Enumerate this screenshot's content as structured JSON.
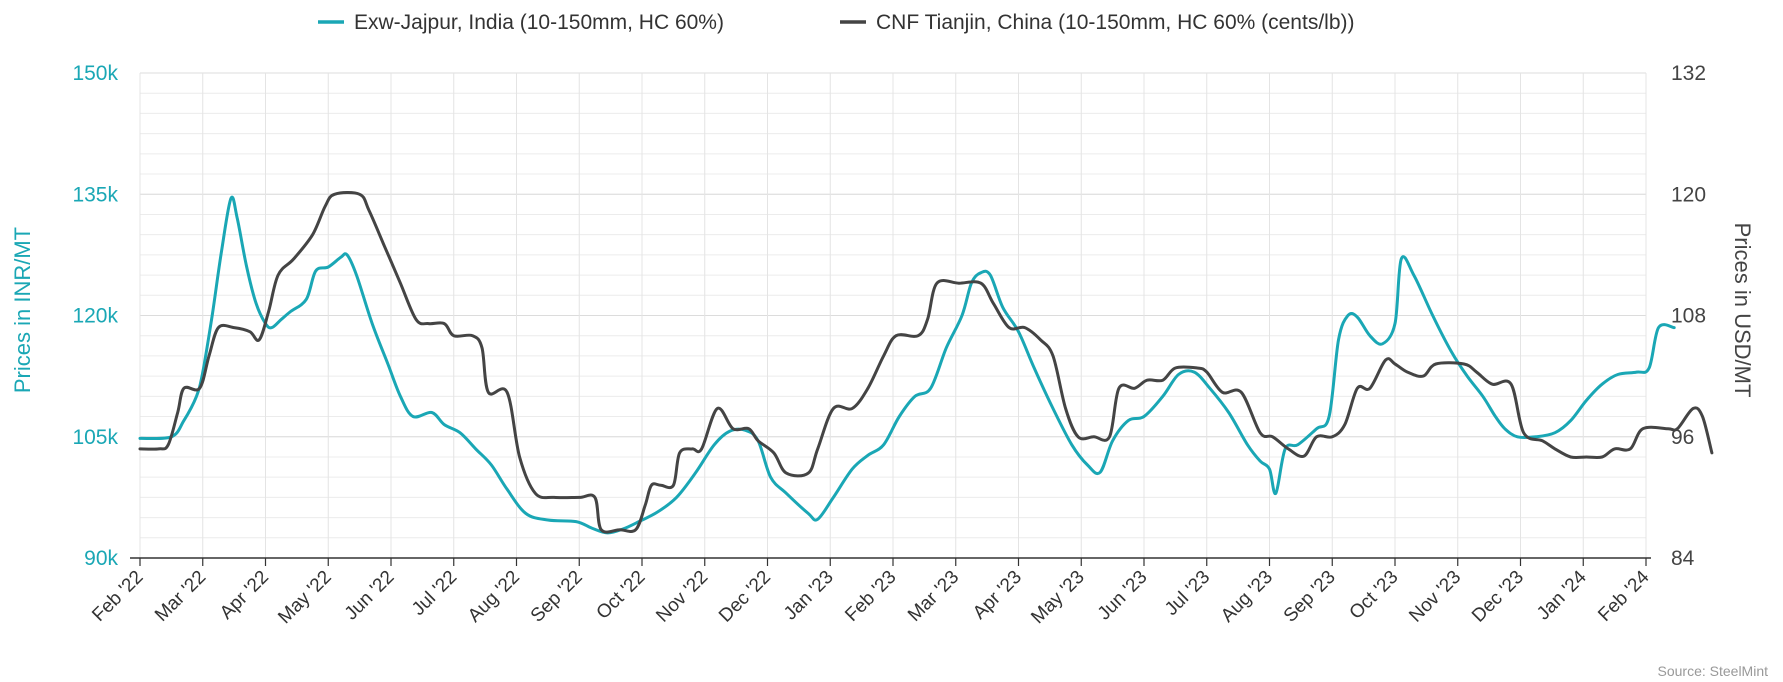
{
  "chart_data": {
    "type": "line",
    "legend": {
      "placement": "top-center"
    },
    "grid": true,
    "source": "Source: SteelMint",
    "x_labels": [
      "Feb '22",
      "Mar '22",
      "Apr '22",
      "May '22",
      "Jun '22",
      "Jul '22",
      "Aug '22",
      "Sep '22",
      "Oct '22",
      "Nov '22",
      "Dec '22",
      "Jan '23",
      "Feb '23",
      "Mar '23",
      "Apr '23",
      "May '23",
      "Jun '23",
      "Jul '23",
      "Aug '23",
      "Sep '23",
      "Oct '23",
      "Nov '23",
      "Dec '23",
      "Jan '24",
      "Feb '24"
    ],
    "x_range": [
      0,
      24
    ],
    "left_axis": {
      "label": "Prices in INR/MT",
      "min": 90000,
      "max": 150000,
      "ticks": [
        90000,
        105000,
        120000,
        135000,
        150000
      ],
      "tick_labels": [
        "90k",
        "105k",
        "120k",
        "135k",
        "150k"
      ],
      "color": "#1aa7b5"
    },
    "right_axis": {
      "label": "Prices in USD/MT",
      "min": 84,
      "max": 132,
      "ticks": [
        84,
        96,
        108,
        120,
        132
      ],
      "tick_labels": [
        "84",
        "96",
        "108",
        "120",
        "132"
      ],
      "color": "#444444"
    },
    "series": [
      {
        "name": "Exw-Jajpur, India (10-150mm, HC 60%)",
        "axis": "left",
        "color": "#1aa7b5",
        "points": [
          [
            0,
            104800
          ],
          [
            0.5,
            105000
          ],
          [
            0.7,
            107000
          ],
          [
            0.9,
            110000
          ],
          [
            1.0,
            113000
          ],
          [
            1.15,
            120000
          ],
          [
            1.3,
            128000
          ],
          [
            1.45,
            134500
          ],
          [
            1.55,
            132000
          ],
          [
            1.7,
            126000
          ],
          [
            1.85,
            121500
          ],
          [
            2.0,
            119000
          ],
          [
            2.1,
            118500
          ],
          [
            2.25,
            119500
          ],
          [
            2.4,
            120500
          ],
          [
            2.65,
            122000
          ],
          [
            2.8,
            125500
          ],
          [
            3.0,
            126000
          ],
          [
            3.2,
            127200
          ],
          [
            3.3,
            127500
          ],
          [
            3.45,
            125000
          ],
          [
            3.7,
            119000
          ],
          [
            3.95,
            114000
          ],
          [
            4.15,
            110000
          ],
          [
            4.35,
            107500
          ],
          [
            4.65,
            108000
          ],
          [
            4.85,
            106500
          ],
          [
            5.1,
            105500
          ],
          [
            5.35,
            103500
          ],
          [
            5.6,
            101500
          ],
          [
            5.85,
            98500
          ],
          [
            6.15,
            95500
          ],
          [
            6.5,
            94700
          ],
          [
            6.95,
            94500
          ],
          [
            7.2,
            93700
          ],
          [
            7.45,
            93100
          ],
          [
            7.7,
            93600
          ],
          [
            7.95,
            94500
          ],
          [
            8.25,
            95700
          ],
          [
            8.55,
            97500
          ],
          [
            8.85,
            100500
          ],
          [
            9.15,
            104000
          ],
          [
            9.4,
            105700
          ],
          [
            9.65,
            105800
          ],
          [
            9.85,
            104500
          ],
          [
            10.05,
            100000
          ],
          [
            10.3,
            98000
          ],
          [
            10.65,
            95500
          ],
          [
            10.8,
            94800
          ],
          [
            11.05,
            97500
          ],
          [
            11.35,
            101000
          ],
          [
            11.6,
            102700
          ],
          [
            11.85,
            104000
          ],
          [
            12.1,
            107500
          ],
          [
            12.35,
            110000
          ],
          [
            12.6,
            111000
          ],
          [
            12.85,
            116000
          ],
          [
            13.1,
            120000
          ],
          [
            13.25,
            124000
          ],
          [
            13.4,
            125300
          ],
          [
            13.55,
            125000
          ],
          [
            13.75,
            121000
          ],
          [
            14.0,
            118000
          ],
          [
            14.25,
            113500
          ],
          [
            14.55,
            108500
          ],
          [
            14.85,
            104000
          ],
          [
            15.1,
            101500
          ],
          [
            15.3,
            100600
          ],
          [
            15.5,
            104500
          ],
          [
            15.75,
            107000
          ],
          [
            16.0,
            107500
          ],
          [
            16.3,
            110000
          ],
          [
            16.55,
            112700
          ],
          [
            16.8,
            113000
          ],
          [
            17.05,
            111000
          ],
          [
            17.35,
            108000
          ],
          [
            17.65,
            104000
          ],
          [
            17.85,
            102000
          ],
          [
            18.0,
            101000
          ],
          [
            18.1,
            98000
          ],
          [
            18.25,
            103500
          ],
          [
            18.45,
            104000
          ],
          [
            18.75,
            106000
          ],
          [
            18.95,
            107500
          ],
          [
            19.1,
            117000
          ],
          [
            19.25,
            120000
          ],
          [
            19.4,
            119800
          ],
          [
            19.6,
            117500
          ],
          [
            19.8,
            116500
          ],
          [
            20.0,
            119000
          ],
          [
            20.1,
            127000
          ],
          [
            20.3,
            125000
          ],
          [
            20.6,
            120000
          ],
          [
            20.9,
            115500
          ],
          [
            21.15,
            112500
          ],
          [
            21.4,
            110000
          ],
          [
            21.6,
            107500
          ],
          [
            21.75,
            106000
          ],
          [
            21.95,
            105000
          ],
          [
            22.25,
            105000
          ],
          [
            22.55,
            105500
          ],
          [
            22.8,
            107000
          ],
          [
            23.05,
            109500
          ],
          [
            23.3,
            111500
          ],
          [
            23.55,
            112700
          ],
          [
            23.85,
            113000
          ],
          [
            24.05,
            113500
          ],
          [
            24.2,
            118500
          ],
          [
            24.45,
            118500
          ]
        ]
      },
      {
        "name": "CNF Tianjin, China (10-150mm, HC 60% (cents/lb))",
        "axis": "right",
        "color": "#444444",
        "points": [
          [
            0,
            103500
          ],
          [
            0.3,
            103500
          ],
          [
            0.45,
            104000
          ],
          [
            0.6,
            108000
          ],
          [
            0.7,
            111000
          ],
          [
            0.95,
            111000
          ],
          [
            1.1,
            115000
          ],
          [
            1.25,
            118500
          ],
          [
            1.5,
            118500
          ],
          [
            1.75,
            118000
          ],
          [
            1.9,
            117000
          ],
          [
            2.05,
            120500
          ],
          [
            2.2,
            125000
          ],
          [
            2.45,
            127000
          ],
          [
            2.75,
            130000
          ],
          [
            2.95,
            133500
          ],
          [
            3.1,
            135000
          ],
          [
            3.5,
            135000
          ],
          [
            3.65,
            133000
          ],
          [
            3.9,
            128500
          ],
          [
            4.15,
            124000
          ],
          [
            4.4,
            119500
          ],
          [
            4.6,
            119000
          ],
          [
            4.85,
            119000
          ],
          [
            5.0,
            117500
          ],
          [
            5.3,
            117500
          ],
          [
            5.45,
            116000
          ],
          [
            5.55,
            110500
          ],
          [
            5.85,
            110500
          ],
          [
            6.05,
            102500
          ],
          [
            6.3,
            98000
          ],
          [
            6.6,
            97500
          ],
          [
            7.0,
            97500
          ],
          [
            7.25,
            97500
          ],
          [
            7.35,
            93500
          ],
          [
            7.65,
            93500
          ],
          [
            7.9,
            93500
          ],
          [
            8.05,
            96500
          ],
          [
            8.15,
            99000
          ],
          [
            8.3,
            99000
          ],
          [
            8.5,
            99000
          ],
          [
            8.6,
            103000
          ],
          [
            8.8,
            103500
          ],
          [
            8.95,
            103500
          ],
          [
            9.2,
            108500
          ],
          [
            9.45,
            106000
          ],
          [
            9.7,
            106000
          ],
          [
            9.85,
            104500
          ],
          [
            10.1,
            103000
          ],
          [
            10.3,
            100500
          ],
          [
            10.65,
            100500
          ],
          [
            10.8,
            103500
          ],
          [
            11.05,
            108500
          ],
          [
            11.35,
            108500
          ],
          [
            11.6,
            111000
          ],
          [
            11.85,
            115000
          ],
          [
            12.05,
            117500
          ],
          [
            12.4,
            117500
          ],
          [
            12.55,
            119500
          ],
          [
            12.7,
            124000
          ],
          [
            13.05,
            124000
          ],
          [
            13.4,
            124000
          ],
          [
            13.6,
            121500
          ],
          [
            13.85,
            118500
          ],
          [
            14.1,
            118500
          ],
          [
            14.35,
            117000
          ],
          [
            14.55,
            115000
          ],
          [
            14.75,
            108500
          ],
          [
            14.95,
            105000
          ],
          [
            15.2,
            105000
          ],
          [
            15.45,
            105000
          ],
          [
            15.6,
            111000
          ],
          [
            15.85,
            111000
          ],
          [
            16.05,
            112000
          ],
          [
            16.3,
            112000
          ],
          [
            16.5,
            113500
          ],
          [
            16.85,
            113500
          ],
          [
            17.0,
            113000
          ],
          [
            17.25,
            110500
          ],
          [
            17.55,
            110500
          ],
          [
            17.85,
            105500
          ],
          [
            18.05,
            105000
          ],
          [
            18.3,
            103500
          ],
          [
            18.55,
            102600
          ],
          [
            18.75,
            105000
          ],
          [
            19.0,
            105000
          ],
          [
            19.2,
            106500
          ],
          [
            19.4,
            111000
          ],
          [
            19.6,
            111000
          ],
          [
            19.85,
            114500
          ],
          [
            20.0,
            114000
          ],
          [
            20.2,
            113000
          ],
          [
            20.45,
            112500
          ],
          [
            20.65,
            114000
          ],
          [
            21.1,
            114000
          ],
          [
            21.3,
            113000
          ],
          [
            21.55,
            111500
          ],
          [
            21.85,
            111500
          ],
          [
            22.05,
            105500
          ],
          [
            22.35,
            104500
          ],
          [
            22.55,
            103500
          ],
          [
            22.8,
            102500
          ],
          [
            23.05,
            102500
          ],
          [
            23.3,
            102500
          ],
          [
            23.5,
            103500
          ],
          [
            23.75,
            103500
          ],
          [
            23.95,
            106000
          ],
          [
            24.35,
            106000
          ],
          [
            24.5,
            106000
          ],
          [
            24.75,
            108500
          ],
          [
            24.9,
            107500
          ],
          [
            25.05,
            103000
          ]
        ]
      }
    ]
  }
}
